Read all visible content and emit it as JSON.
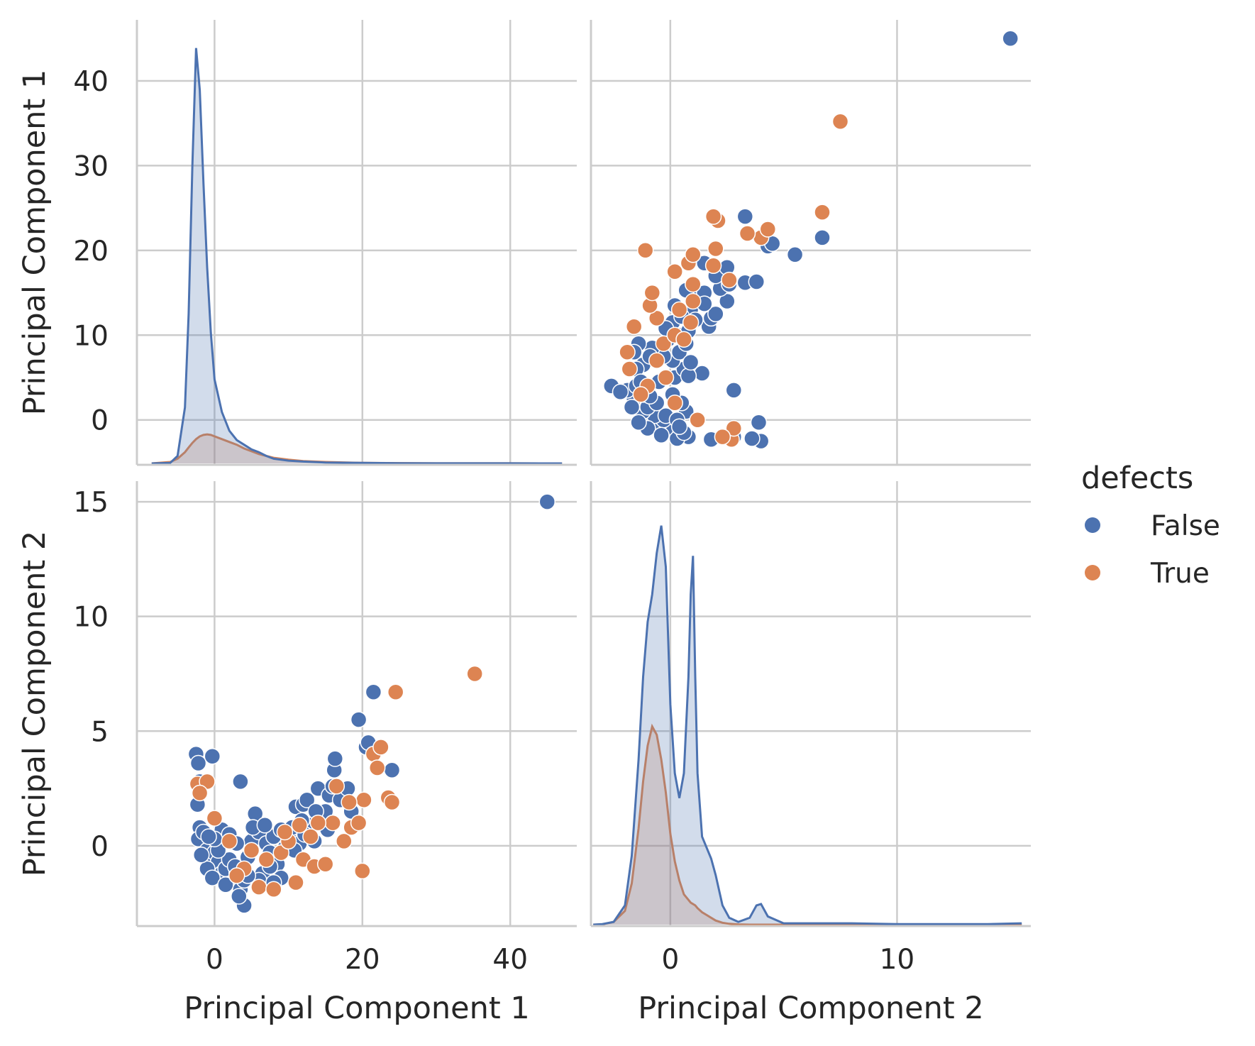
{
  "legend": {
    "title": "defects",
    "items": [
      {
        "label": "False",
        "color": "#4c72b0"
      },
      {
        "label": "True",
        "color": "#dd8452"
      }
    ]
  },
  "chart_data": {
    "type": "scatter",
    "layout": "pairplot",
    "variables": [
      "Principal Component 1",
      "Principal Component 2"
    ],
    "hue": "defects",
    "grid": true,
    "legend_position": "right",
    "axes": {
      "pc1": {
        "label": "Principal Component 1",
        "range": [
          -10.5,
          49
        ],
        "ticks": [
          0,
          20,
          40
        ],
        "tick_labels": [
          "0",
          "20",
          "40"
        ],
        "row_ticks": [
          0,
          10,
          20,
          30,
          40
        ],
        "row_tick_labels": [
          "0",
          "10",
          "20",
          "30",
          "40"
        ],
        "row_range": [
          -5.3,
          47.2
        ]
      },
      "pc2": {
        "label": "Principal Component 2",
        "range": [
          -3.5,
          15.9
        ],
        "ticks": [
          0,
          10
        ],
        "tick_labels": [
          "0",
          "10"
        ],
        "row_ticks": [
          0,
          5,
          10,
          15
        ],
        "row_tick_labels": [
          "0",
          "5",
          "10",
          "15"
        ],
        "row_range": [
          -3.5,
          15.9
        ]
      }
    },
    "kde_pc1": {
      "x": [
        -8.5,
        -6,
        -5,
        -4,
        -3.5,
        -3,
        -2.5,
        -2,
        -1.5,
        -1,
        -0.5,
        0,
        1,
        2,
        3,
        4,
        5,
        6,
        7,
        8,
        10,
        12,
        15,
        20,
        25,
        30,
        35,
        40,
        47
      ],
      "False": [
        0,
        0.05,
        0.8,
        6,
        16,
        32,
        44.5,
        40,
        30,
        21,
        14,
        9,
        5.5,
        3.5,
        2.5,
        2.0,
        1.5,
        1.2,
        0.8,
        0.5,
        0.3,
        0.2,
        0.1,
        0.05,
        0.02,
        0.01,
        0.01,
        0.01,
        0
      ],
      "True": [
        0,
        0.15,
        0.5,
        1.2,
        1.7,
        2.2,
        2.6,
        2.9,
        3.05,
        3.1,
        3.05,
        2.9,
        2.6,
        2.3,
        2.0,
        1.6,
        1.3,
        1.0,
        0.8,
        0.6,
        0.4,
        0.25,
        0.15,
        0.05,
        0.03,
        0.01,
        0.01,
        0.01,
        0
      ]
    },
    "kde_pc2": {
      "x": [
        -3.4,
        -3,
        -2.5,
        -2,
        -1.7,
        -1.4,
        -1.2,
        -1,
        -0.8,
        -0.6,
        -0.4,
        -0.2,
        0,
        0.2,
        0.4,
        0.6,
        0.8,
        0.9,
        1.0,
        1.1,
        1.2,
        1.4,
        1.6,
        1.8,
        2.0,
        2.3,
        2.6,
        3.0,
        3.5,
        3.8,
        4.0,
        4.3,
        5,
        6,
        8,
        10,
        12,
        14,
        15.5
      ],
      "False": [
        0,
        0.02,
        0.1,
        0.7,
        2.5,
        6,
        9,
        11,
        12,
        13.5,
        14.5,
        13,
        8,
        5.5,
        4.6,
        5.5,
        9,
        12,
        13.4,
        9,
        5.5,
        3.2,
        2.8,
        2.4,
        1.8,
        0.7,
        0.25,
        0.1,
        0.25,
        0.7,
        0.75,
        0.3,
        0.05,
        0.05,
        0.05,
        0.02,
        0.02,
        0.02,
        0.05
      ],
      "True": [
        0,
        0.01,
        0.1,
        0.5,
        1.5,
        3.5,
        5.2,
        6.5,
        7.2,
        6.9,
        6.0,
        4.8,
        3.3,
        2.3,
        1.6,
        1.1,
        0.9,
        0.8,
        0.75,
        0.7,
        0.6,
        0.45,
        0.35,
        0.25,
        0.15,
        0.07,
        0.03,
        0.01,
        0,
        0,
        0,
        0,
        0,
        0,
        0,
        0,
        0,
        0,
        0
      ]
    },
    "points": {
      "False": [
        [
          -2.5,
          4.0
        ],
        [
          -2.2,
          3.6
        ],
        [
          -0.3,
          3.9
        ],
        [
          3.5,
          2.8
        ],
        [
          -2.0,
          2.8
        ],
        [
          -2.3,
          1.8
        ],
        [
          -2.0,
          0.8
        ],
        [
          -2.2,
          0.3
        ],
        [
          -1.5,
          0.6
        ],
        [
          -1.0,
          -0.2
        ],
        [
          -0.5,
          -0.5
        ],
        [
          0,
          -0.3
        ],
        [
          0.5,
          -0.7
        ],
        [
          1.0,
          -1.2
        ],
        [
          1.5,
          -1.0
        ],
        [
          2.0,
          -0.6
        ],
        [
          2.5,
          -1.6
        ],
        [
          3.0,
          -1.2
        ],
        [
          3.5,
          -1.9
        ],
        [
          4.0,
          -1.5
        ],
        [
          4.5,
          -0.5
        ],
        [
          5.0,
          0.2
        ],
        [
          5.5,
          1.4
        ],
        [
          6.0,
          0.6
        ],
        [
          6.5,
          -1.2
        ],
        [
          7.0,
          0.1
        ],
        [
          7.5,
          -0.3
        ],
        [
          8.0,
          0.4
        ],
        [
          8.5,
          -0.8
        ],
        [
          9.0,
          0.7
        ],
        [
          9.5,
          -0.1
        ],
        [
          10.0,
          0.5
        ],
        [
          10.5,
          0.8
        ],
        [
          11.0,
          1.7
        ],
        [
          11.5,
          0.1
        ],
        [
          12.0,
          1.8
        ],
        [
          12.5,
          2.0
        ],
        [
          13.0,
          0.9
        ],
        [
          13.5,
          0.2
        ],
        [
          14.0,
          2.5
        ],
        [
          14.5,
          1.2
        ],
        [
          15.0,
          1.5
        ],
        [
          15.5,
          2.2
        ],
        [
          16.0,
          2.6
        ],
        [
          16.2,
          3.3
        ],
        [
          16.3,
          3.8
        ],
        [
          17.0,
          2.0
        ],
        [
          18.0,
          2.5
        ],
        [
          18.5,
          1.5
        ],
        [
          19.5,
          5.5
        ],
        [
          20.5,
          4.3
        ],
        [
          20.8,
          4.5
        ],
        [
          21.5,
          6.7
        ],
        [
          24.0,
          3.3
        ],
        [
          45.0,
          15.0
        ],
        [
          4.0,
          -2.6
        ],
        [
          1.0,
          0.7
        ],
        [
          2.0,
          0.5
        ],
        [
          0.5,
          -0.2
        ],
        [
          3.0,
          0.1
        ],
        [
          -1.0,
          -1.0
        ],
        [
          -0.3,
          -1.4
        ],
        [
          1.5,
          -1.7
        ],
        [
          6.0,
          -1.5
        ],
        [
          7.5,
          -0.9
        ],
        [
          9.0,
          -1.4
        ],
        [
          -1.8,
          -0.4
        ],
        [
          0.0,
          0.3
        ],
        [
          4.5,
          -1.3
        ],
        [
          8.0,
          -1.6
        ],
        [
          3.3,
          -2.2
        ],
        [
          5.2,
          0.8
        ],
        [
          10.8,
          -0.2
        ],
        [
          12.2,
          0.5
        ],
        [
          2.8,
          -0.9
        ],
        [
          -0.8,
          0.4
        ],
        [
          6.8,
          0.9
        ],
        [
          13.7,
          1.5
        ],
        [
          15.3,
          0.7
        ],
        [
          11.8,
          1.1
        ]
      ],
      "True": [
        [
          -2.3,
          2.7
        ],
        [
          -1.0,
          2.8
        ],
        [
          -2.0,
          2.3
        ],
        [
          0.0,
          1.2
        ],
        [
          2.0,
          0.2
        ],
        [
          4.0,
          -1.0
        ],
        [
          6.0,
          -1.8
        ],
        [
          8.0,
          -1.9
        ],
        [
          9.0,
          -0.3
        ],
        [
          10.0,
          0.2
        ],
        [
          11.0,
          -1.6
        ],
        [
          12.0,
          -0.6
        ],
        [
          13.5,
          -0.9
        ],
        [
          15.0,
          -0.8
        ],
        [
          16.0,
          1.0
        ],
        [
          17.5,
          0.2
        ],
        [
          18.5,
          0.8
        ],
        [
          19.5,
          1.0
        ],
        [
          20.0,
          -1.1
        ],
        [
          20.2,
          2.0
        ],
        [
          21.5,
          4.0
        ],
        [
          22.0,
          3.4
        ],
        [
          22.5,
          4.3
        ],
        [
          23.5,
          2.1
        ],
        [
          24.0,
          1.9
        ],
        [
          24.5,
          6.7
        ],
        [
          35.2,
          7.5
        ],
        [
          5.0,
          -0.2
        ],
        [
          7.0,
          -0.6
        ],
        [
          11.5,
          0.9
        ],
        [
          14.0,
          1.0
        ],
        [
          18.2,
          1.9
        ],
        [
          16.5,
          2.6
        ],
        [
          3.0,
          -1.3
        ],
        [
          9.5,
          0.6
        ],
        [
          13.0,
          0.4
        ]
      ]
    }
  }
}
